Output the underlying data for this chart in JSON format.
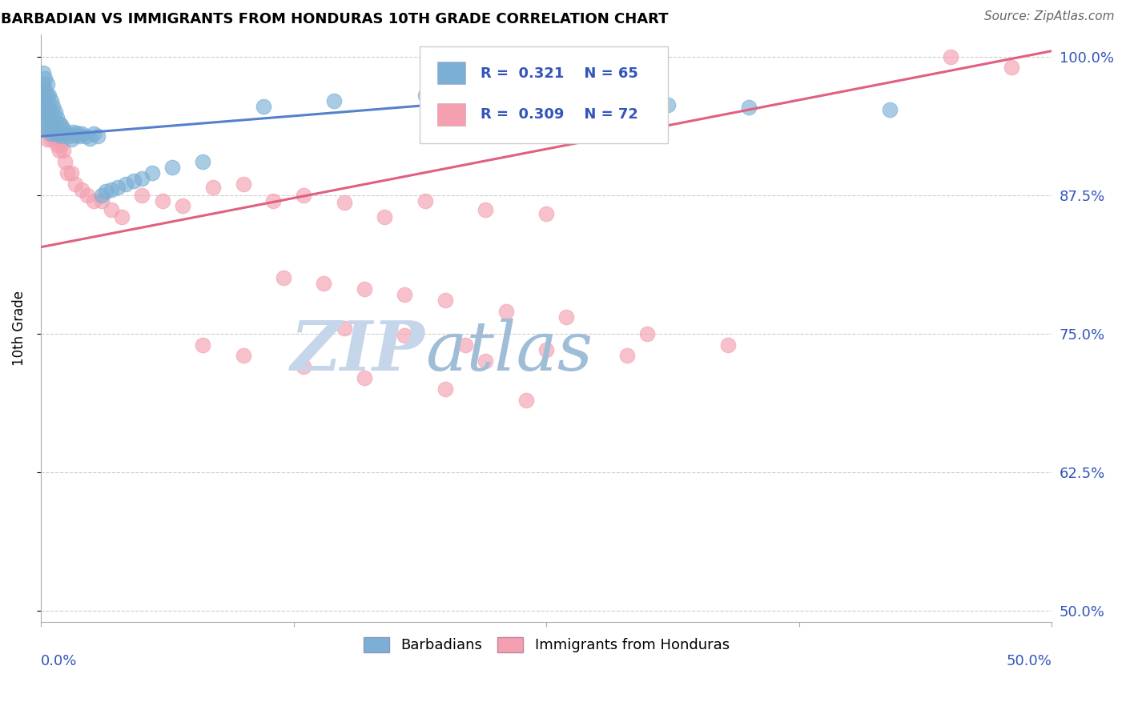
{
  "title": "BARBADIAN VS IMMIGRANTS FROM HONDURAS 10TH GRADE CORRELATION CHART",
  "source": "Source: ZipAtlas.com",
  "ylabel": "10th Grade",
  "ytick_labels": [
    "100.0%",
    "87.5%",
    "75.0%",
    "62.5%",
    "50.0%"
  ],
  "ytick_values": [
    1.0,
    0.875,
    0.75,
    0.625,
    0.5
  ],
  "xlim": [
    0.0,
    0.5
  ],
  "ylim": [
    0.49,
    1.02
  ],
  "r_barbadian": 0.321,
  "n_barbadian": 65,
  "r_honduras": 0.309,
  "n_honduras": 72,
  "blue_color": "#7BAFD4",
  "pink_color": "#F4A0B0",
  "blue_line_color": "#5580CC",
  "pink_line_color": "#E06080",
  "watermark_zip_color": "#C8D8F0",
  "watermark_atlas_color": "#A8C8E8",
  "blue_line_x": [
    0.0,
    0.3
  ],
  "blue_line_y": [
    0.928,
    0.972
  ],
  "pink_line_x": [
    0.0,
    0.5
  ],
  "pink_line_y": [
    0.828,
    1.005
  ],
  "barb_x_cluster": [
    0.001,
    0.001,
    0.001,
    0.002,
    0.002,
    0.002,
    0.002,
    0.002,
    0.003,
    0.003,
    0.003,
    0.003,
    0.003,
    0.004,
    0.004,
    0.004,
    0.004,
    0.005,
    0.005,
    0.005,
    0.005,
    0.006,
    0.006,
    0.006,
    0.007,
    0.007,
    0.007,
    0.008,
    0.008,
    0.009,
    0.009,
    0.01,
    0.01,
    0.011,
    0.012,
    0.013,
    0.014,
    0.015,
    0.016,
    0.017,
    0.018,
    0.019,
    0.02,
    0.022,
    0.024,
    0.026,
    0.028,
    0.03,
    0.032,
    0.035,
    0.038,
    0.042,
    0.046,
    0.05,
    0.055,
    0.065,
    0.08,
    0.11,
    0.145,
    0.19,
    0.23,
    0.27,
    0.31,
    0.35,
    0.42
  ],
  "barb_y_cluster": [
    0.985,
    0.975,
    0.965,
    0.98,
    0.97,
    0.96,
    0.955,
    0.945,
    0.975,
    0.965,
    0.955,
    0.945,
    0.935,
    0.965,
    0.955,
    0.945,
    0.935,
    0.96,
    0.95,
    0.94,
    0.93,
    0.955,
    0.945,
    0.935,
    0.95,
    0.94,
    0.93,
    0.945,
    0.935,
    0.94,
    0.93,
    0.938,
    0.928,
    0.935,
    0.932,
    0.93,
    0.928,
    0.925,
    0.932,
    0.929,
    0.931,
    0.928,
    0.93,
    0.928,
    0.926,
    0.93,
    0.928,
    0.875,
    0.878,
    0.88,
    0.882,
    0.885,
    0.888,
    0.89,
    0.895,
    0.9,
    0.905,
    0.955,
    0.96,
    0.965,
    0.96,
    0.958,
    0.956,
    0.954,
    0.952
  ],
  "hond_x": [
    0.001,
    0.001,
    0.001,
    0.002,
    0.002,
    0.002,
    0.002,
    0.003,
    0.003,
    0.003,
    0.003,
    0.004,
    0.004,
    0.004,
    0.005,
    0.005,
    0.005,
    0.006,
    0.006,
    0.007,
    0.007,
    0.008,
    0.008,
    0.009,
    0.009,
    0.01,
    0.011,
    0.012,
    0.013,
    0.015,
    0.017,
    0.02,
    0.023,
    0.026,
    0.03,
    0.035,
    0.04,
    0.05,
    0.06,
    0.07,
    0.085,
    0.1,
    0.115,
    0.13,
    0.15,
    0.17,
    0.19,
    0.22,
    0.25,
    0.12,
    0.14,
    0.16,
    0.18,
    0.2,
    0.23,
    0.26,
    0.3,
    0.34,
    0.15,
    0.18,
    0.21,
    0.25,
    0.29,
    0.08,
    0.1,
    0.13,
    0.16,
    0.2,
    0.24,
    0.45,
    0.48,
    0.22
  ],
  "hond_y": [
    0.97,
    0.96,
    0.95,
    0.965,
    0.955,
    0.945,
    0.935,
    0.955,
    0.945,
    0.935,
    0.925,
    0.95,
    0.94,
    0.93,
    0.945,
    0.935,
    0.925,
    0.94,
    0.93,
    0.935,
    0.925,
    0.93,
    0.92,
    0.925,
    0.915,
    0.92,
    0.915,
    0.905,
    0.895,
    0.895,
    0.885,
    0.88,
    0.875,
    0.87,
    0.87,
    0.862,
    0.855,
    0.875,
    0.87,
    0.865,
    0.882,
    0.885,
    0.87,
    0.875,
    0.868,
    0.855,
    0.87,
    0.862,
    0.858,
    0.8,
    0.795,
    0.79,
    0.785,
    0.78,
    0.77,
    0.765,
    0.75,
    0.74,
    0.755,
    0.748,
    0.74,
    0.735,
    0.73,
    0.74,
    0.73,
    0.72,
    0.71,
    0.7,
    0.69,
    1.0,
    0.99,
    0.725
  ]
}
